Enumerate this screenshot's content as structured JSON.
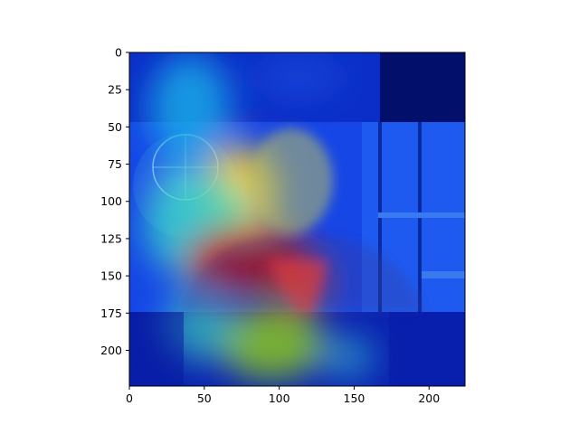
{
  "image": {
    "description_tags": [
      "heatmap-overlay",
      "portrait",
      "un-emblem-background"
    ],
    "colormap": "jet",
    "colors": {
      "axes": "#000000",
      "background": "#ffffff",
      "heat_low": "#00008f",
      "heat_mid": "#3ad8c8",
      "heat_high": "#b40000"
    }
  },
  "axes": {
    "x_ticks": [
      "0",
      "50",
      "100",
      "150",
      "200"
    ],
    "y_ticks": [
      "0",
      "25",
      "50",
      "75",
      "100",
      "125",
      "150",
      "175",
      "200"
    ],
    "xlim": [
      0,
      224
    ],
    "ylim": [
      224,
      0
    ]
  }
}
